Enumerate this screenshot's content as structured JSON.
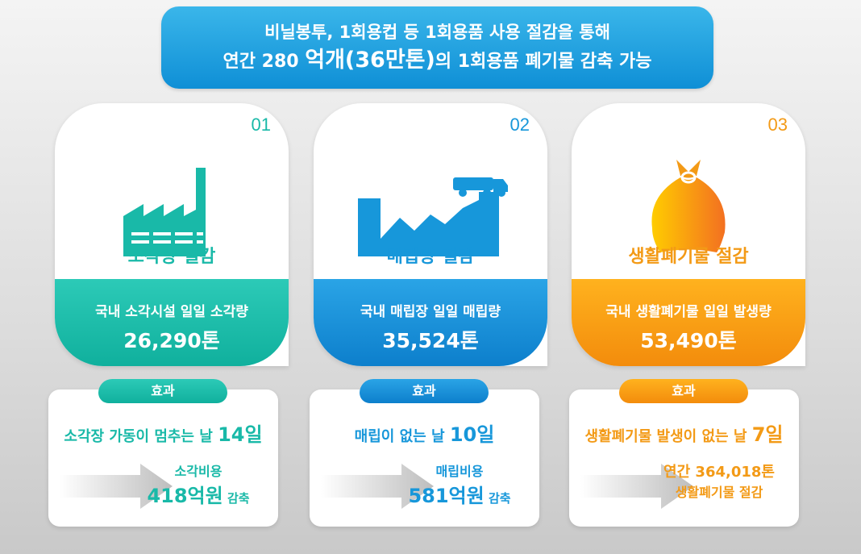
{
  "banner": {
    "line1": "비닐봉투, 1회용컵 등 1회용품 사용 절감을 통해",
    "line2_pre": "연간 280 ",
    "line2_big": "억개(36만톤)",
    "line2_post": "의 1회용품 폐기물 감축 가능"
  },
  "colors": {
    "teal": "#19b9a8",
    "blue": "#1797da",
    "orange": "#f39a16"
  },
  "cards": [
    {
      "num": "01",
      "icon": "factory-icon",
      "title": "소각량 절감",
      "desc": "국내 소각시설 일일 소각량",
      "value": "26,290톤",
      "effect_tab": "효과",
      "effect_main": "소각장 가동이 멈추는 날 ",
      "effect_days": "14일",
      "sub1": "소각비용",
      "sub2": "418억원",
      "sub3": " 감축"
    },
    {
      "num": "02",
      "icon": "landfill-truck-icon",
      "title": "매립량 절감",
      "desc": "국내 매립장 일일 매립량",
      "value": "35,524톤",
      "effect_tab": "효과",
      "effect_main": "매립이 없는 날 ",
      "effect_days": "10일",
      "sub1": "매립비용",
      "sub2": "581억원",
      "sub3": " 감축"
    },
    {
      "num": "03",
      "icon": "garbage-bag-icon",
      "title": "생활폐기물 절감",
      "desc": "국내 생활폐기물 일일 발생량",
      "value": "53,490톤",
      "effect_tab": "효과",
      "effect_main": "생활폐기물 발생이 없는 날 ",
      "effect_days": "7일",
      "sub1": "연간 364,018톤",
      "sub2": "",
      "sub3": "생활폐기물 절감"
    }
  ]
}
